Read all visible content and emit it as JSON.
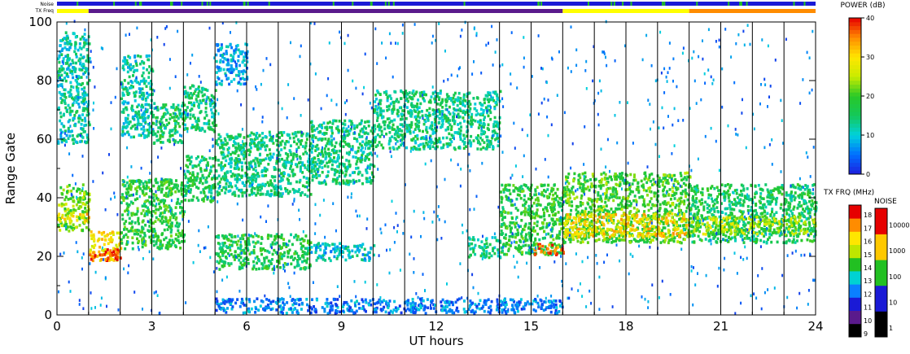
{
  "chart_data": {
    "type": "heatmap",
    "title": "",
    "xlabel": "UT hours",
    "ylabel": "Range Gate",
    "xlim": [
      0,
      24
    ],
    "ylim": [
      0,
      100
    ],
    "x_ticks": [
      "0",
      "3",
      "6",
      "9",
      "12",
      "15",
      "18",
      "21",
      "24"
    ],
    "y_ticks": [
      "0",
      "20",
      "40",
      "60",
      "80",
      "100"
    ],
    "scan_boundaries_ut": [
      1,
      2,
      3,
      4,
      5,
      6,
      7,
      8,
      9,
      10,
      11,
      12,
      13,
      14,
      15,
      16,
      17,
      18,
      19,
      20,
      21,
      22,
      23
    ],
    "power_features": [
      {
        "t0": 0,
        "t1": 1,
        "g0": 28,
        "g1": 44,
        "level": 22
      },
      {
        "t0": 0,
        "t1": 1,
        "g0": 31,
        "g1": 34,
        "level": 30
      },
      {
        "t0": 0,
        "t1": 1,
        "g0": 58,
        "g1": 96,
        "level": 12
      },
      {
        "t0": 1,
        "t1": 2,
        "g0": 18,
        "g1": 28,
        "level": 30
      },
      {
        "t0": 1,
        "t1": 2,
        "g0": 18,
        "g1": 22,
        "level": 38
      },
      {
        "t0": 2,
        "t1": 4,
        "g0": 22,
        "g1": 46,
        "level": 18
      },
      {
        "t0": 2,
        "t1": 3,
        "g0": 60,
        "g1": 88,
        "level": 12
      },
      {
        "t0": 3,
        "t1": 4,
        "g0": 58,
        "g1": 72,
        "level": 16
      },
      {
        "t0": 4,
        "t1": 5,
        "g0": 62,
        "g1": 78,
        "level": 14
      },
      {
        "t0": 4,
        "t1": 5,
        "g0": 38,
        "g1": 54,
        "level": 16
      },
      {
        "t0": 5,
        "t1": 8,
        "g0": 15,
        "g1": 27,
        "level": 17
      },
      {
        "t0": 5,
        "t1": 8,
        "g0": 40,
        "g1": 62,
        "level": 14
      },
      {
        "t0": 5,
        "t1": 6,
        "g0": 78,
        "g1": 92,
        "level": 8
      },
      {
        "t0": 8,
        "t1": 10,
        "g0": 44,
        "g1": 66,
        "level": 14
      },
      {
        "t0": 8,
        "t1": 10,
        "g0": 18,
        "g1": 24,
        "level": 10
      },
      {
        "t0": 10,
        "t1": 14,
        "g0": 56,
        "g1": 76,
        "level": 14
      },
      {
        "t0": 13,
        "t1": 14,
        "g0": 19,
        "g1": 26,
        "level": 14
      },
      {
        "t0": 14,
        "t1": 16,
        "g0": 20,
        "g1": 44,
        "level": 18
      },
      {
        "t0": 15,
        "t1": 16,
        "g0": 20,
        "g1": 24,
        "level": 36
      },
      {
        "t0": 16,
        "t1": 20,
        "g0": 24,
        "g1": 48,
        "level": 20
      },
      {
        "t0": 16,
        "t1": 20,
        "g0": 26,
        "g1": 34,
        "level": 30
      },
      {
        "t0": 20,
        "t1": 24,
        "g0": 24,
        "g1": 44,
        "level": 16
      },
      {
        "t0": 20,
        "t1": 24,
        "g0": 27,
        "g1": 33,
        "level": 24
      },
      {
        "t0": 5,
        "t1": 16,
        "g0": 0,
        "g1": 5,
        "level": 6
      }
    ],
    "top_bars": {
      "noise_label": "Noise",
      "txfreq_label": "TX Freq",
      "noise_color": "#1a1ad6",
      "noise_flicker_color": "#22c022",
      "txfreq_segments": [
        {
          "t0": 0,
          "t1": 1,
          "color": "#ffff00"
        },
        {
          "t0": 1,
          "t1": 16,
          "color": "#5a1a8c"
        },
        {
          "t0": 16,
          "t1": 20,
          "color": "#ffff00"
        },
        {
          "t0": 20,
          "t1": 24,
          "color": "#ff8c00"
        }
      ]
    },
    "colorbars": {
      "power": {
        "title": "POWER (dB)",
        "range": [
          0,
          40
        ],
        "ticks": [
          "0",
          "10",
          "20",
          "30",
          "40"
        ]
      },
      "txfreq": {
        "title": "TX FRQ (MHz)",
        "labels": [
          "9",
          "10",
          "11",
          "12",
          "13",
          "14",
          "15",
          "16",
          "17",
          "18"
        ],
        "colors": [
          "#000000",
          "#5a1a8c",
          "#1a1ad6",
          "#0a80ff",
          "#00d2d2",
          "#22c022",
          "#bfe600",
          "#ffe600",
          "#ff8c00",
          "#e60000"
        ]
      },
      "noise": {
        "title": "NOISE",
        "labels": [
          "1",
          "10",
          "100",
          "1000",
          "10000"
        ],
        "colors": [
          "#000000",
          "#1a1ad6",
          "#22c022",
          "#ffc800",
          "#e60000"
        ]
      }
    }
  }
}
